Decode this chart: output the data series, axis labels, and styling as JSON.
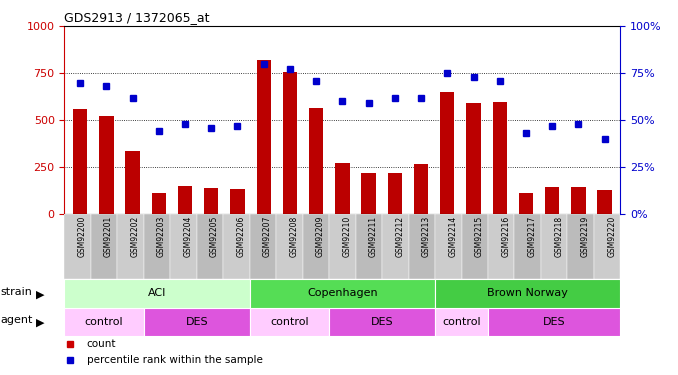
{
  "title": "GDS2913 / 1372065_at",
  "samples": [
    "GSM92200",
    "GSM92201",
    "GSM92202",
    "GSM92203",
    "GSM92204",
    "GSM92205",
    "GSM92206",
    "GSM92207",
    "GSM92208",
    "GSM92209",
    "GSM92210",
    "GSM92211",
    "GSM92212",
    "GSM92213",
    "GSM92214",
    "GSM92215",
    "GSM92216",
    "GSM92217",
    "GSM92218",
    "GSM92219",
    "GSM92220"
  ],
  "counts": [
    560,
    520,
    335,
    110,
    150,
    140,
    130,
    820,
    755,
    565,
    270,
    215,
    220,
    265,
    650,
    590,
    595,
    110,
    145,
    145,
    125
  ],
  "percentiles": [
    70,
    68,
    62,
    44,
    48,
    46,
    47,
    80,
    77,
    71,
    60,
    59,
    62,
    62,
    75,
    73,
    71,
    43,
    47,
    48,
    40
  ],
  "bar_color": "#bb0000",
  "dot_color": "#0000cc",
  "left_yaxis_color": "#cc0000",
  "right_yaxis_color": "#0000cc",
  "ylim_left": [
    0,
    1000
  ],
  "ylim_right": [
    0,
    100
  ],
  "yticks_left": [
    0,
    250,
    500,
    750,
    1000
  ],
  "yticks_right": [
    0,
    25,
    50,
    75,
    100
  ],
  "strain_groups": [
    {
      "label": "ACI",
      "start": 0,
      "end": 7,
      "color": "#ccffcc"
    },
    {
      "label": "Copenhagen",
      "start": 7,
      "end": 14,
      "color": "#55dd55"
    },
    {
      "label": "Brown Norway",
      "start": 14,
      "end": 21,
      "color": "#44cc44"
    }
  ],
  "agent_groups": [
    {
      "label": "control",
      "start": 0,
      "end": 3,
      "color": "#ffccff"
    },
    {
      "label": "DES",
      "start": 3,
      "end": 7,
      "color": "#dd55dd"
    },
    {
      "label": "control",
      "start": 7,
      "end": 10,
      "color": "#ffccff"
    },
    {
      "label": "DES",
      "start": 10,
      "end": 14,
      "color": "#dd55dd"
    },
    {
      "label": "control",
      "start": 14,
      "end": 16,
      "color": "#ffccff"
    },
    {
      "label": "DES",
      "start": 16,
      "end": 21,
      "color": "#dd55dd"
    }
  ],
  "legend_items": [
    {
      "label": "count",
      "color": "#cc0000"
    },
    {
      "label": "percentile rank within the sample",
      "color": "#0000cc"
    }
  ],
  "tick_bg_even": "#cccccc",
  "tick_bg_odd": "#bbbbbb",
  "chart_bg": "#ffffff",
  "fig_bg": "#ffffff"
}
